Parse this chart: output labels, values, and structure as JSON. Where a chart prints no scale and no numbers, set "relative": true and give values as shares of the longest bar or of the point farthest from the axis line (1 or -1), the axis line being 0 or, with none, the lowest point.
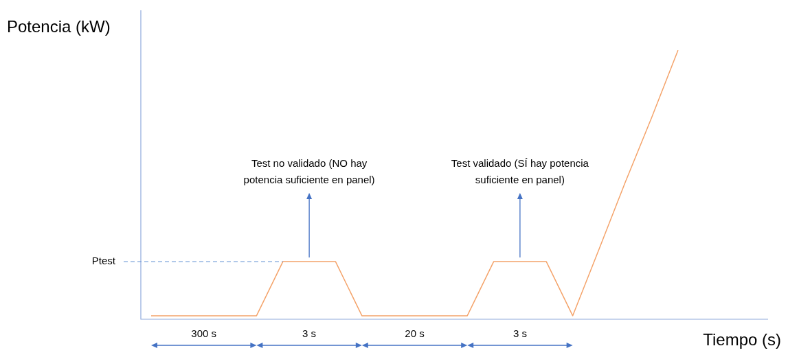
{
  "chart_data": {
    "type": "line",
    "relative": true,
    "xlabel": "Tiempo (s)",
    "ylabel": "Potencia (kW)",
    "categories": [
      null,
      null,
      null,
      null,
      null,
      null,
      null,
      null,
      null,
      null,
      null,
      null,
      null,
      null,
      null,
      null,
      null,
      null,
      null,
      null,
      null
    ],
    "marker": "none",
    "legend": false,
    "series": [
      {
        "color": "#f4a36a",
        "values": [
          0.013,
          0.013,
          0.013,
          0.013,
          0.013,
          0.214,
          0.214,
          0.214,
          0.013,
          0.013,
          0.013,
          0.013,
          0.013,
          0.214,
          0.214,
          0.214,
          0.013,
          0.26,
          0.51,
          0.75,
          1
        ]
      }
    ],
    "ref_lines": [
      {
        "axis": "y",
        "value": 0.214,
        "label": "Ptest",
        "line_style": "dashed",
        "color": "#5b8bd0"
      }
    ],
    "annotations": [
      "Test no validado (NO hay potencia suficiente en panel)",
      "Test validado (SÍ hay potencia suficiente en panel)",
      "300 s",
      "3 s",
      "20 s",
      "3 s"
    ]
  }
}
